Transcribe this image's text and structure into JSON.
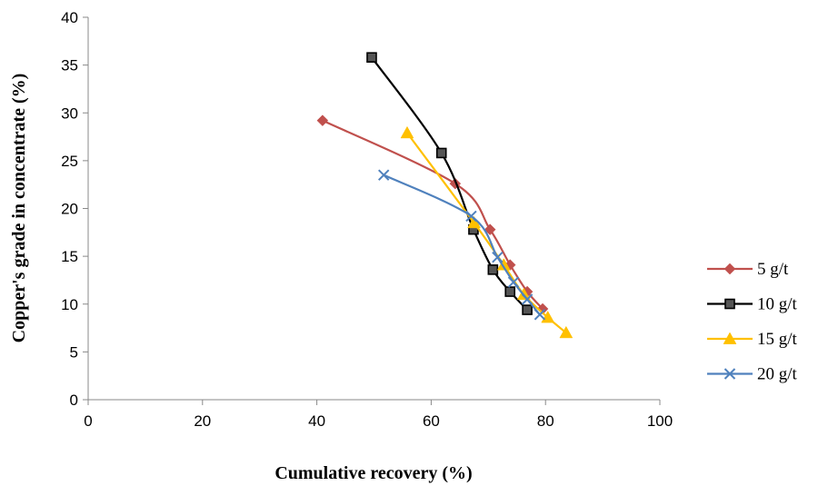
{
  "chart_data": {
    "type": "scatter",
    "title": "",
    "xlabel": "Cumulative recovery (%)",
    "ylabel": "Copper's grade in concentrate (%)",
    "xlim": [
      0,
      100
    ],
    "ylim": [
      0,
      40
    ],
    "xticks": [
      "0",
      "20",
      "40",
      "60",
      "80",
      "100"
    ],
    "yticks": [
      "0",
      "5",
      "10",
      "15",
      "20",
      "25",
      "30",
      "35",
      "40"
    ],
    "grid": false,
    "legend_position": "right",
    "series": [
      {
        "name": "5 g/t",
        "color": "#C0504D",
        "marker": "diamond",
        "points": [
          [
            41.0,
            29.2
          ],
          [
            64.2,
            22.6
          ],
          [
            70.3,
            17.8
          ],
          [
            73.8,
            14.1
          ],
          [
            76.8,
            11.3
          ],
          [
            79.5,
            9.5
          ]
        ]
      },
      {
        "name": "10 g/t",
        "color": "#000000",
        "marker": "square",
        "points": [
          [
            49.6,
            35.8
          ],
          [
            61.8,
            25.8
          ],
          [
            67.4,
            17.8
          ],
          [
            70.8,
            13.6
          ],
          [
            73.8,
            11.3
          ],
          [
            76.8,
            9.4
          ]
        ]
      },
      {
        "name": "15 g/t",
        "color": "#FFC000",
        "marker": "triangle",
        "points": [
          [
            55.8,
            27.9
          ],
          [
            67.5,
            18.5
          ],
          [
            72.7,
            14.1
          ],
          [
            76.2,
            11.0
          ],
          [
            80.4,
            8.6
          ],
          [
            83.6,
            7.0
          ]
        ]
      },
      {
        "name": "20 g/t",
        "color": "#4F81BD",
        "marker": "x",
        "points": [
          [
            51.7,
            23.5
          ],
          [
            67.0,
            19.2
          ],
          [
            71.6,
            14.9
          ],
          [
            74.4,
            12.3
          ],
          [
            76.8,
            10.5
          ],
          [
            79.0,
            8.9
          ]
        ]
      }
    ]
  }
}
